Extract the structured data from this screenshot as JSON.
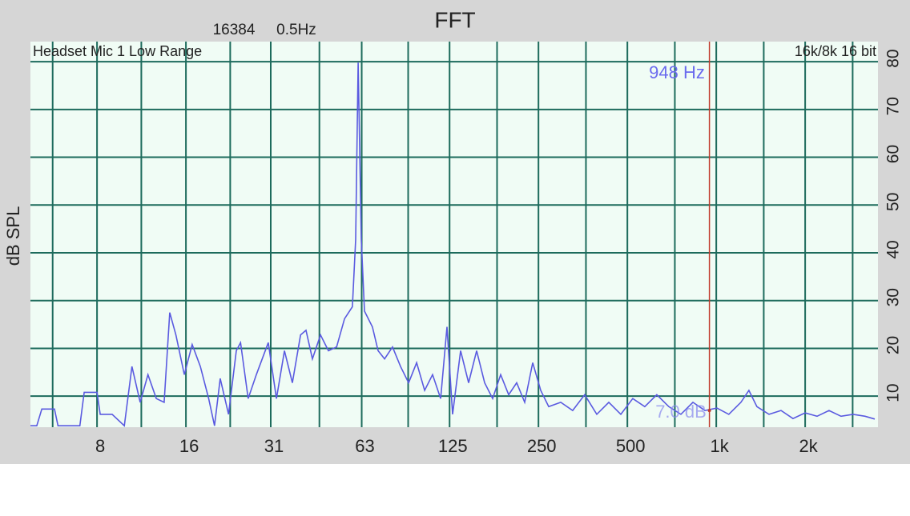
{
  "chart_data": {
    "type": "line",
    "title": "FFT",
    "fft_size": "16384",
    "resolution": "0.5Hz",
    "input_label": "Headset Mic 1 Low Range",
    "format_label": "16k/8k 16 bit",
    "y_label": "dB SPL",
    "xscale": "log",
    "grid": true,
    "color": "#5a5ae0",
    "xlim": [
      4.76,
      3528
    ],
    "ylim": [
      3.5,
      84.2
    ],
    "xticks": [
      8,
      16,
      31,
      63,
      125,
      250,
      500,
      {
        "value": 1000,
        "label": "1k"
      },
      {
        "value": 2000,
        "label": "2k"
      }
    ],
    "xminor": [
      5.66,
      11.3,
      22.6,
      45.3,
      90.5,
      181,
      362,
      724,
      1448,
      2896
    ],
    "yticks": [
      10,
      20,
      30,
      40,
      50,
      60,
      70,
      80
    ],
    "cursor": {
      "x": 948,
      "x_label": "948 Hz",
      "y": 7.0,
      "y_label": "7.0 dB"
    },
    "x": [
      4.76,
      5.0,
      5.2,
      5.74,
      5.9,
      7.0,
      7.24,
      8,
      8.2,
      9.0,
      9.9,
      10.5,
      11.2,
      11.9,
      12.7,
      13.5,
      14.1,
      14.8,
      15.8,
      16.8,
      17.9,
      19.1,
      20.0,
      20.9,
      22.3,
      23.7,
      24.5,
      26.0,
      27.7,
      30.4,
      32.4,
      34.5,
      36.7,
      39.1,
      40.8,
      42.9,
      45.7,
      48.6,
      51.8,
      55.1,
      58.6,
      60.1,
      61.3,
      62.8,
      64.4,
      68.5,
      71.6,
      75.3,
      80.1,
      85.3,
      90.8,
      96.7,
      102.9,
      109.5,
      116.6,
      122.5,
      128,
      136.2,
      145,
      154.4,
      164.3,
      174.9,
      186.2,
      198.2,
      211,
      224.6,
      239,
      254.4,
      270.8,
      297.4,
      326.5,
      358.5,
      393.9,
      432.6,
      475,
      521.6,
      572.8,
      629,
      690.8,
      759,
      833.6,
      915.2,
      1005,
      1103,
      1212,
      1290,
      1373,
      1509,
      1657,
      1819,
      1998,
      2194,
      2409,
      2645,
      2906,
      3191,
      3440
    ],
    "values": [
      3.8,
      3.8,
      7.3,
      7.3,
      3.8,
      3.8,
      10.8,
      10.8,
      6.2,
      6.2,
      3.8,
      16.2,
      8.7,
      14.5,
      9.5,
      8.7,
      27.5,
      22.8,
      14.5,
      20.8,
      16.2,
      9.5,
      3.8,
      13.7,
      6.2,
      19.5,
      21.2,
      9.5,
      14.5,
      21.2,
      9.5,
      19.5,
      12.8,
      22.8,
      23.8,
      17.8,
      22.8,
      19.5,
      20.3,
      26.2,
      28.7,
      42.8,
      79.8,
      42.8,
      27.8,
      24.5,
      19.5,
      17.8,
      20.3,
      16.2,
      12.8,
      17.0,
      11.2,
      14.5,
      9.5,
      24.5,
      6.2,
      19.5,
      12.8,
      19.5,
      12.8,
      9.5,
      14.5,
      10.3,
      12.8,
      8.7,
      17.0,
      11.2,
      7.8,
      8.7,
      7.0,
      10.3,
      6.2,
      8.7,
      6.2,
      9.5,
      7.8,
      10.3,
      7.8,
      6.2,
      8.7,
      7.0,
      7.5,
      6.2,
      8.7,
      11.2,
      7.8,
      6.2,
      7.0,
      5.3,
      6.5,
      5.8,
      7.0,
      5.8,
      6.2,
      5.8,
      5.2
    ]
  }
}
